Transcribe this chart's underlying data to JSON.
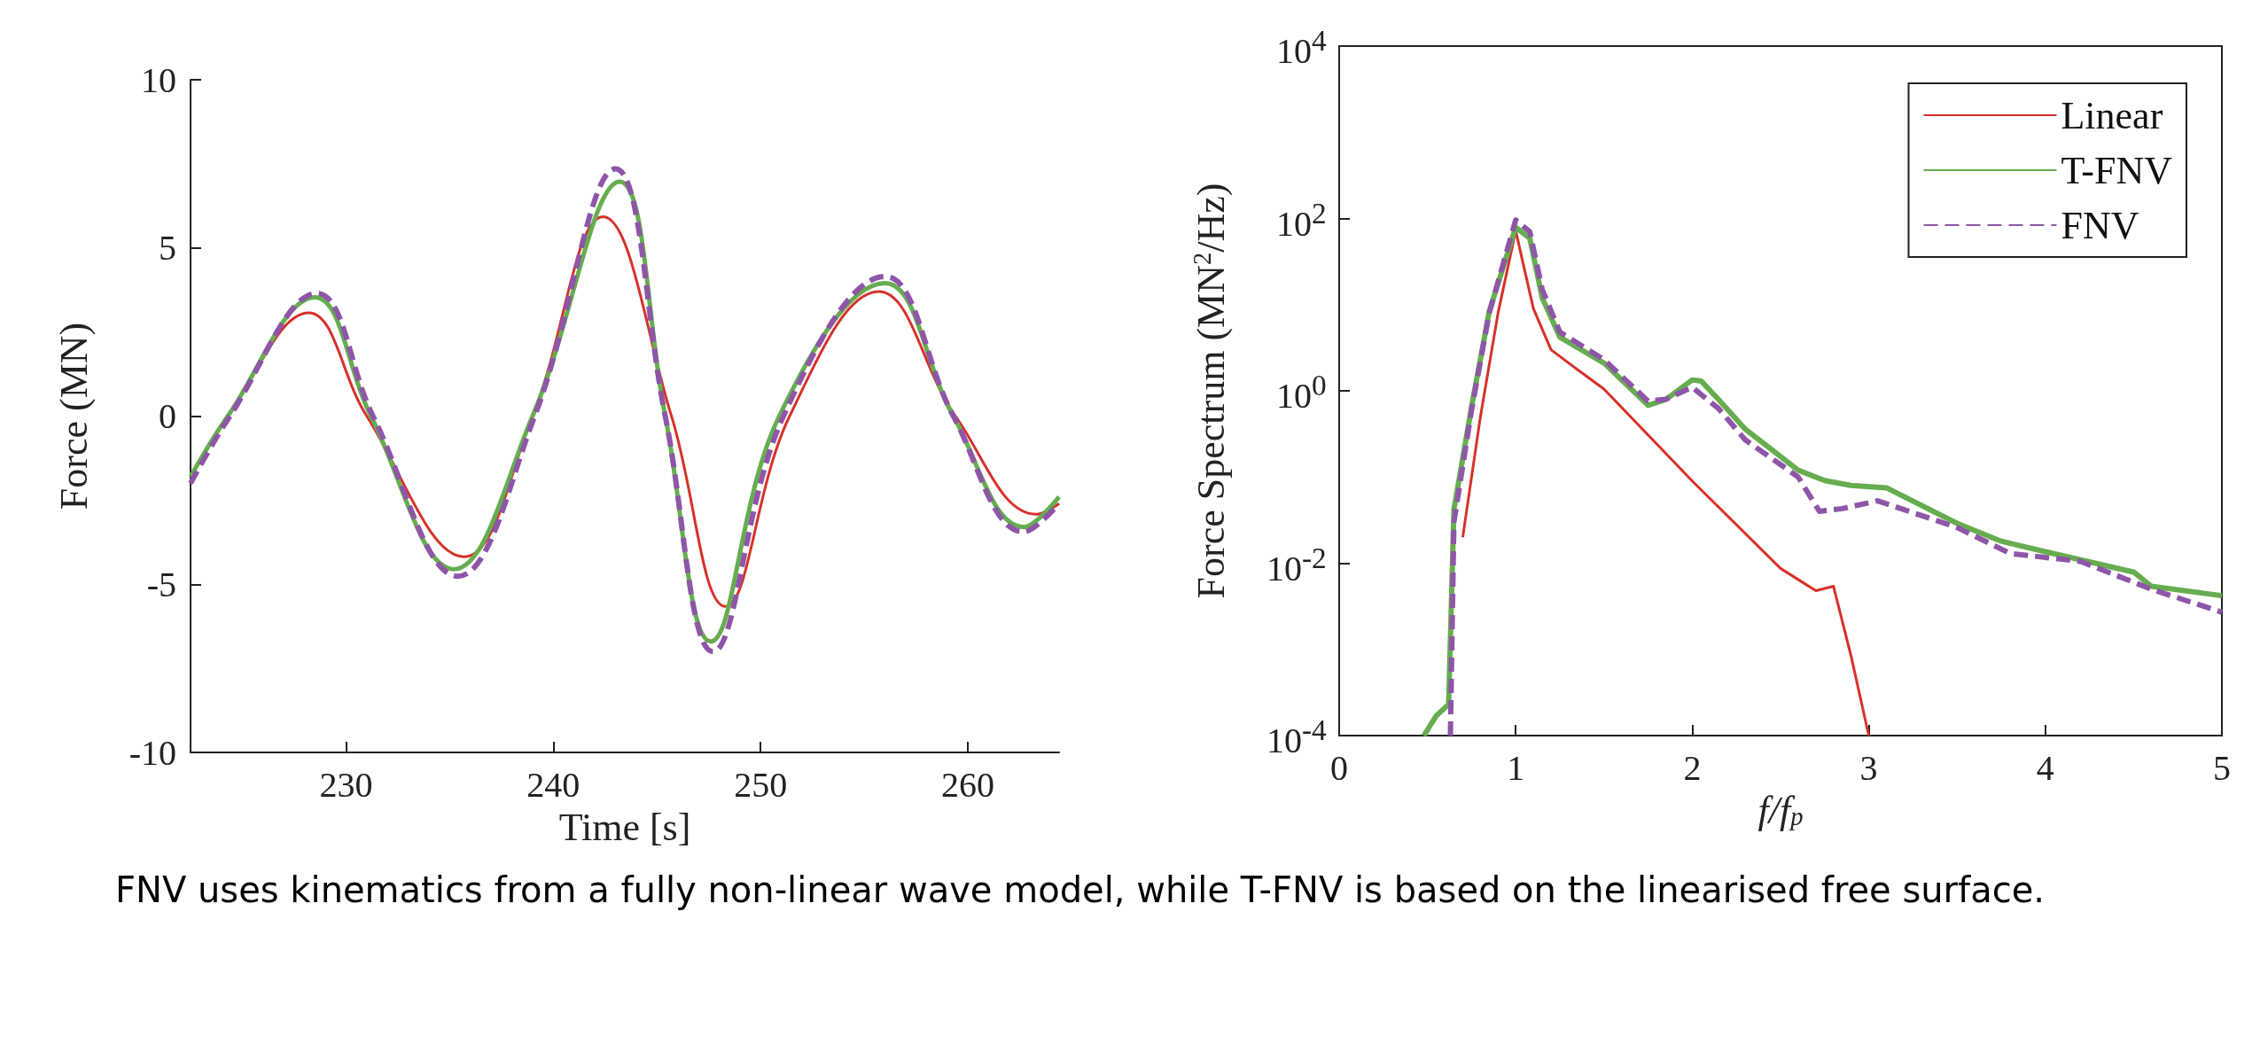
{
  "chart_data": [
    {
      "type": "line",
      "xlabel": "Time [s]",
      "ylabel": "Force (MN)",
      "xlim": [
        222.5,
        264.4
      ],
      "xticks": [
        230,
        240,
        250,
        260
      ],
      "ylim": [
        -10,
        10
      ],
      "yticks": [
        -10,
        -5,
        0,
        5,
        10
      ],
      "grid": false,
      "legend": false,
      "marker": "none",
      "annotations": [
        "FNV uses kinematics from a fully non-linear wave model, while T-FNV is based on the linearised free surface."
      ],
      "series": [
        {
          "color": "#d7312a",
          "line_style": "solid",
          "x": [
            222.5,
            224.3,
            228.2,
            231.0,
            235.7,
            239.0,
            242.4,
            245.7,
            248.3,
            251.4,
            255.7,
            259.4,
            263.3,
            264.4
          ],
          "values": [
            -1.8,
            0,
            3.07,
            0,
            -4.18,
            0,
            5.93,
            0,
            -5.66,
            0,
            3.7,
            0,
            -2.92,
            -2.6
          ]
        },
        {
          "color": "#66ad50",
          "line_style": "solid",
          "x": [
            222.5,
            224.3,
            228.5,
            231.2,
            235.2,
            239.0,
            243.2,
            245.4,
            247.6,
            250.9,
            256.0,
            259.3,
            262.7,
            264.4
          ],
          "values": [
            -1.8,
            0,
            3.53,
            0,
            -4.55,
            0,
            6.97,
            0,
            -6.7,
            0,
            3.95,
            0,
            -3.3,
            -2.4
          ]
        },
        {
          "color": "#8e55a8",
          "line_style": "dashed",
          "x": [
            222.5,
            224.4,
            228.6,
            231.3,
            235.4,
            239.1,
            243.0,
            245.4,
            247.7,
            251.1,
            256.0,
            259.3,
            262.7,
            264.4
          ],
          "values": [
            -2.0,
            0,
            3.65,
            0,
            -4.76,
            0,
            7.35,
            0,
            -7.0,
            0,
            4.15,
            0,
            -3.44,
            -2.6
          ]
        }
      ]
    },
    {
      "type": "line",
      "xlabel": "f/f$_{p}$",
      "ylabel": "Force Spectrum (MN$^{2}$/Hz)",
      "log": "y",
      "xlim": [
        0,
        5
      ],
      "xticks": [
        0,
        1,
        2,
        3,
        4,
        5
      ],
      "ylim": [
        0.0001,
        10000
      ],
      "yticks": [
        {
          "value": 0.0001,
          "label": "10$^{-4}$"
        },
        {
          "value": 0.01,
          "label": "10$^{-2}$"
        },
        {
          "value": 1,
          "label": "10$^{0}$"
        },
        {
          "value": 100,
          "label": "10$^{2}$"
        },
        {
          "value": 10000,
          "label": "10$^{4}$"
        }
      ],
      "grid": false,
      "legend": "top right",
      "marker": "none",
      "series": [
        {
          "name": "Linear",
          "color": "#d7312a",
          "line_style": "solid",
          "x": [
            0.7,
            0.8,
            0.9,
            1.0,
            1.1,
            1.2,
            1.3,
            1.5,
            2.0,
            2.5,
            2.7,
            2.8,
            2.9,
            3.0
          ],
          "values": [
            0.02,
            0.5,
            8,
            72,
            9,
            3,
            2.1,
            1.05,
            0.09,
            0.0087,
            0.0048,
            0.0054,
            0.00083,
            0.0001
          ]
        },
        {
          "name": "T-FNV",
          "color": "#66ad50",
          "line_style": "solid",
          "x": [
            0.48,
            0.55,
            0.62,
            0.65,
            0.75,
            0.85,
            1.0,
            1.08,
            1.15,
            1.25,
            1.5,
            1.75,
            1.85,
            2.0,
            2.05,
            2.15,
            2.3,
            2.6,
            2.75,
            2.9,
            3.1,
            3.5,
            3.75,
            4.0,
            4.5,
            4.6,
            5.0
          ],
          "values": [
            0.0001,
            0.00017,
            0.00023,
            0.042,
            0.65,
            8.3,
            79,
            59,
            12,
            4.2,
            2.1,
            0.68,
            0.79,
            1.34,
            1.3,
            0.79,
            0.36,
            0.12,
            0.091,
            0.08,
            0.075,
            0.029,
            0.018,
            0.0136,
            0.0079,
            0.0054,
            0.0042
          ]
        },
        {
          "name": "FNV",
          "color": "#8e55a8",
          "line_style": "dashed",
          "x": [
            0.63,
            0.65,
            0.75,
            0.85,
            1.0,
            1.08,
            1.15,
            1.25,
            1.5,
            1.75,
            1.85,
            2.0,
            2.15,
            2.3,
            2.6,
            2.72,
            2.85,
            3.05,
            3.5,
            3.8,
            4.2,
            4.6,
            5.0
          ],
          "values": [
            0.0001,
            0.03,
            0.6,
            8,
            96,
            70,
            15,
            4.8,
            2.3,
            0.76,
            0.8,
            1.1,
            0.62,
            0.27,
            0.1,
            0.04,
            0.043,
            0.053,
            0.026,
            0.013,
            0.0105,
            0.005,
            0.0027
          ]
        }
      ]
    }
  ]
}
